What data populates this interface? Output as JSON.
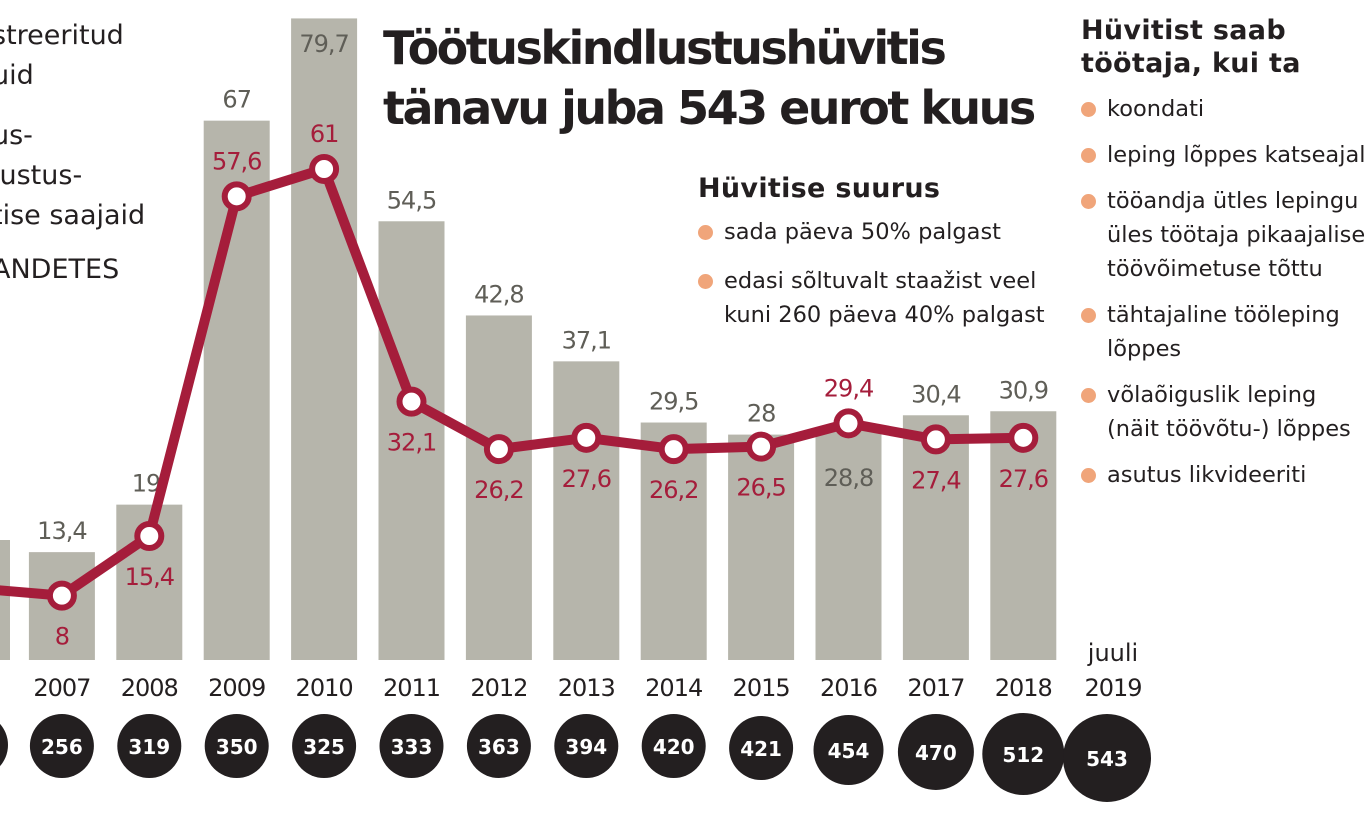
{
  "title_lines": [
    "Töötuskindlustushüvitis",
    "tänavu juba 543 eurot kuus"
  ],
  "left_legend": [
    "streeritud",
    "uid",
    "us-",
    "lustus-",
    "tise saajaid",
    "ANDETES"
  ],
  "amount_box": {
    "heading": "Hüvitise suurus",
    "items": [
      "sada päeva 50% palgast",
      "edasi sõltuvalt staažist veel kuni 260 päeva 40% palgast"
    ]
  },
  "conditions_box": {
    "heading": "Hüvitist saab töötaja, kui ta",
    "items": [
      "koondati",
      "leping lõppes katseajal",
      "tööandja ütles lepingu üles töötaja pikaajalise töövõimetuse tõttu",
      "tähtajaline tööleping lõppes",
      "võlaõiguslik leping (näit töövõtu-) lõppes",
      "asutus likvideeriti"
    ]
  },
  "colors": {
    "bars": "#b6b5ab",
    "line": "#a51d3b",
    "bar_labels": "#5f5e57",
    "dots": "#f0a57a",
    "circles": "#231f20"
  },
  "chart_data": {
    "type": "bar+line",
    "categories": [
      "6",
      "2007",
      "2008",
      "2009",
      "2010",
      "2011",
      "2012",
      "2013",
      "2014",
      "2015",
      "2016",
      "2017",
      "2018",
      "juuli 2019"
    ],
    "bar_values": [
      null,
      13.4,
      19.3,
      67,
      79.7,
      54.5,
      42.8,
      37.1,
      29.5,
      28,
      28.8,
      30.4,
      30.9,
      null
    ],
    "bar_labels": [
      "",
      "13,4",
      "19,",
      "67",
      "79,7",
      "54,5",
      "42,8",
      "37,1",
      "29,5",
      "28",
      "28,8",
      "30,4",
      "30,9",
      ""
    ],
    "line_values": [
      null,
      8,
      15.4,
      57.6,
      61,
      32.1,
      26.2,
      27.6,
      26.2,
      26.5,
      29.4,
      27.4,
      27.6,
      null
    ],
    "line_labels": [
      "",
      "8",
      "15,4",
      "57,6",
      "61",
      "32,1",
      "26,2",
      "27,6",
      "26,2",
      "26,5",
      "29,4",
      "27,4",
      "27,6",
      ""
    ],
    "amounts": [
      "",
      "256",
      "319",
      "350",
      "325",
      "333",
      "363",
      "394",
      "420",
      "421",
      "454",
      "470",
      "512",
      "543"
    ],
    "year_labels": [
      "6",
      "2007",
      "2008",
      "2009",
      "2010",
      "2011",
      "2012",
      "2013",
      "2014",
      "2015",
      "2016",
      "2017",
      "2018",
      "2019"
    ],
    "year_top_labels": [
      "",
      "",
      "",
      "",
      "",
      "",
      "",
      "",
      "",
      "",
      "",
      "",
      "",
      "juuli"
    ],
    "ylim": [
      0,
      80
    ]
  }
}
